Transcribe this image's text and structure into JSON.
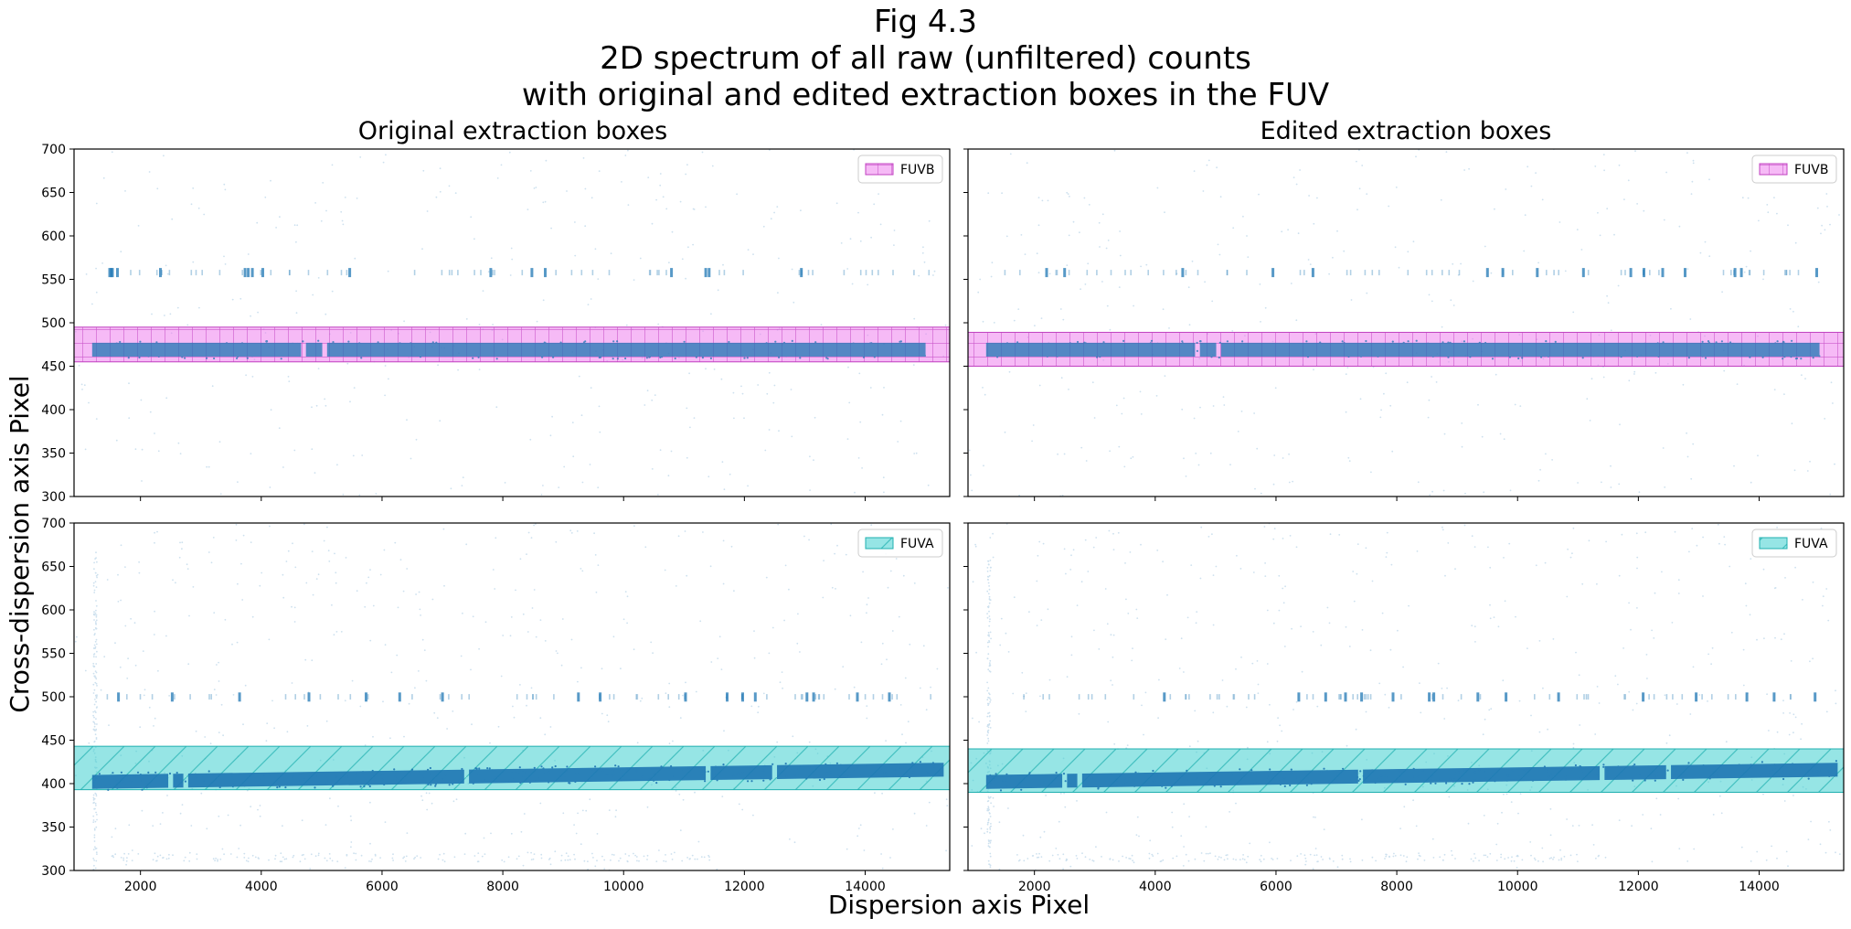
{
  "figure": {
    "title_lines": [
      "Fig 4.3",
      "2D spectrum of all raw (unfiltered) counts",
      "with original and edited extraction boxes in the FUV"
    ],
    "xlabel": "Dispersion axis Pixel",
    "ylabel": "Cross-dispersion axis Pixel"
  },
  "colors": {
    "fuvb_fill": "#ee82ee",
    "fuvb_edge": "#c040c0",
    "fuva_fill": "#40d0d0",
    "fuva_edge": "#20b0b0",
    "counts": "#1f77b4"
  },
  "chart_data": [
    {
      "type": "scatter",
      "panel": "top-left",
      "column_title": "Original extraction boxes",
      "segment": "FUVB",
      "xlim": [
        900,
        15400
      ],
      "ylim": [
        300,
        700
      ],
      "yticks": [
        300,
        350,
        400,
        450,
        500,
        550,
        600,
        650,
        700
      ],
      "xticks": [
        2000,
        4000,
        6000,
        8000,
        10000,
        12000,
        14000
      ],
      "box": {
        "label": "FUVB",
        "xmin": 900,
        "xmax": 15400,
        "ymin": 455,
        "ymax": 495
      },
      "spectrum": {
        "x_start": 1200,
        "x_end": 15000,
        "y_center_start": 469,
        "y_center_end": 469,
        "half_width": 8
      },
      "lines_y": 558,
      "legend_loc": "upper right"
    },
    {
      "type": "scatter",
      "panel": "top-right",
      "column_title": "Edited extraction boxes",
      "segment": "FUVB",
      "xlim": [
        900,
        15400
      ],
      "ylim": [
        300,
        700
      ],
      "yticks": [
        300,
        350,
        400,
        450,
        500,
        550,
        600,
        650,
        700
      ],
      "xticks": [
        2000,
        4000,
        6000,
        8000,
        10000,
        12000,
        14000
      ],
      "box": {
        "label": "FUVB",
        "xmin": 900,
        "xmax": 15400,
        "ymin": 450,
        "ymax": 489
      },
      "spectrum": {
        "x_start": 1200,
        "x_end": 15000,
        "y_center_start": 469,
        "y_center_end": 469,
        "half_width": 8
      },
      "lines_y": 558,
      "legend_loc": "upper right"
    },
    {
      "type": "scatter",
      "panel": "bottom-left",
      "column_title": "",
      "segment": "FUVA",
      "xlim": [
        900,
        15400
      ],
      "ylim": [
        300,
        700
      ],
      "yticks": [
        300,
        350,
        400,
        450,
        500,
        550,
        600,
        650,
        700
      ],
      "xticks": [
        2000,
        4000,
        6000,
        8000,
        10000,
        12000,
        14000
      ],
      "xticklabels": [
        "2000",
        "4000",
        "6000",
        "8000",
        "10000",
        "12000",
        "14000"
      ],
      "box": {
        "label": "FUVA",
        "xmin": 900,
        "xmax": 15400,
        "ymin": 393,
        "ymax": 443
      },
      "spectrum": {
        "x_start": 1200,
        "x_end": 15300,
        "y_center_start": 402,
        "y_center_end": 416,
        "half_width": 8
      },
      "lines_y": 500,
      "legend_loc": "upper right"
    },
    {
      "type": "scatter",
      "panel": "bottom-right",
      "column_title": "",
      "segment": "FUVA",
      "xlim": [
        900,
        15400
      ],
      "ylim": [
        300,
        700
      ],
      "yticks": [
        300,
        350,
        400,
        450,
        500,
        550,
        600,
        650,
        700
      ],
      "xticks": [
        2000,
        4000,
        6000,
        8000,
        10000,
        12000,
        14000
      ],
      "xticklabels": [
        "2000",
        "4000",
        "6000",
        "8000",
        "10000",
        "12000",
        "14000"
      ],
      "box": {
        "label": "FUVA",
        "xmin": 900,
        "xmax": 15400,
        "ymin": 390,
        "ymax": 440
      },
      "spectrum": {
        "x_start": 1200,
        "x_end": 15300,
        "y_center_start": 402,
        "y_center_end": 416,
        "half_width": 8
      },
      "lines_y": 500,
      "legend_loc": "upper right"
    }
  ]
}
